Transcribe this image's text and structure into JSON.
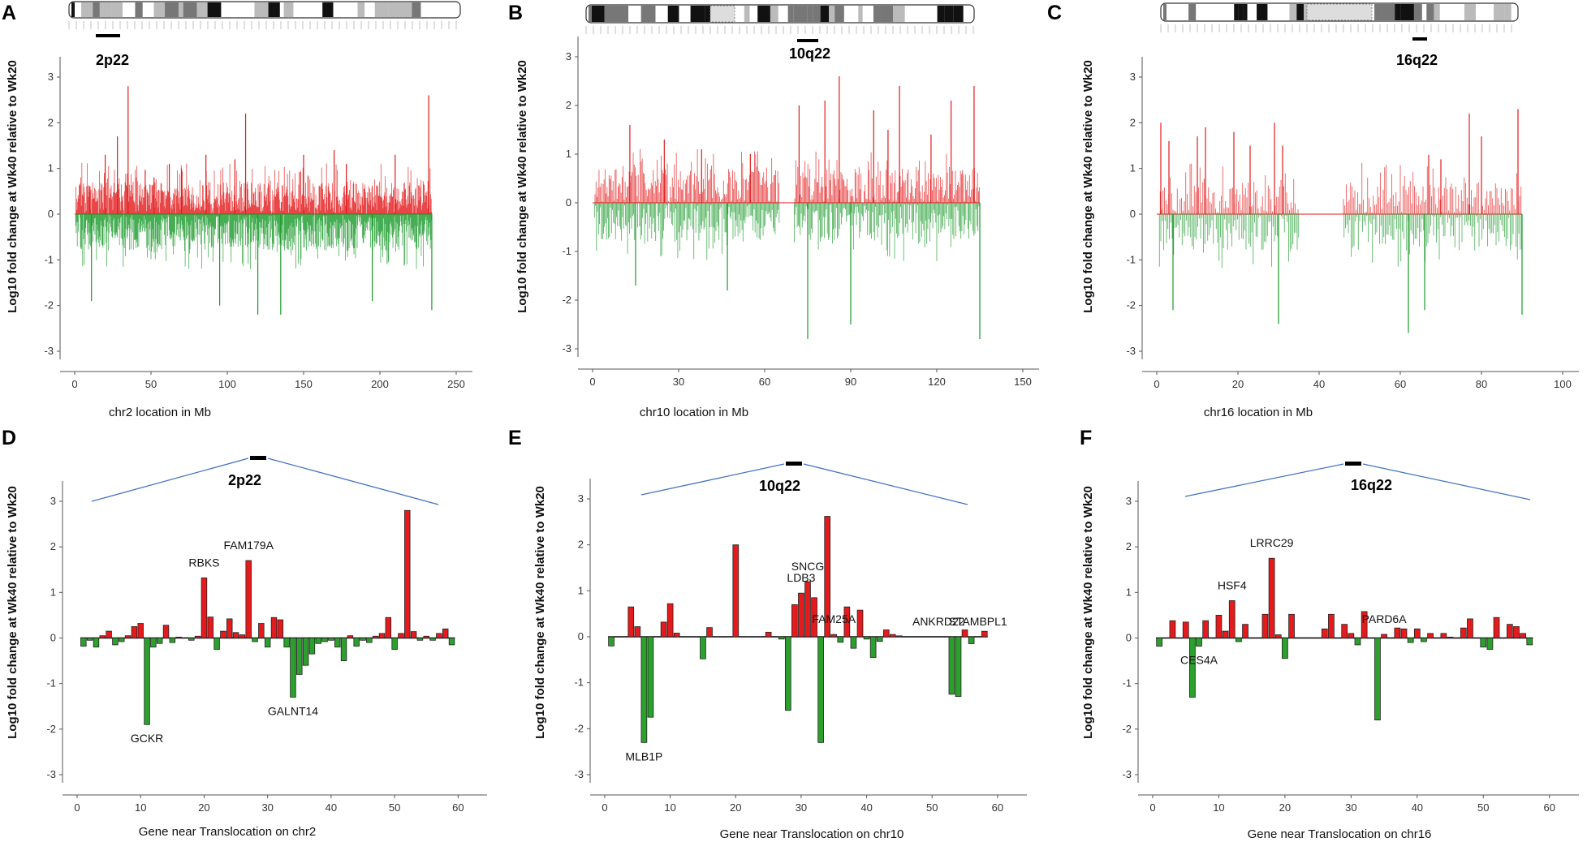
{
  "figure": {
    "panels": [
      {
        "label": "A",
        "band": "2p22",
        "xlabel": "chr2 location in Mb",
        "ylabel": "Log10 fold change at Wk40 relative to Wk20"
      },
      {
        "label": "B",
        "band": "10q22",
        "xlabel": "chr10 location in Mb",
        "ylabel": "Log10 fold change at Wk40 relative to Wk20"
      },
      {
        "label": "C",
        "band": "16q22",
        "xlabel": "chr16 location in Mb",
        "ylabel": "Log10 fold change at Wk40 relative to Wk20"
      },
      {
        "label": "D",
        "band": "2p22",
        "xlabel": "Gene near Translocation on chr2",
        "ylabel": "Log10 fold change at Wk40 relative to Wk20"
      },
      {
        "label": "E",
        "band": "10q22",
        "xlabel": "Gene near Translocation on chr10",
        "ylabel": "Log10 fold change at Wk40 relative to Wk20"
      },
      {
        "label": "F",
        "band": "16q22",
        "xlabel": "Gene near Translocation on chr16",
        "ylabel": "Log10 fold change at Wk40 relative to Wk20"
      }
    ]
  },
  "colors": {
    "up": "#e31a1c",
    "down": "#1a9a2a",
    "bar_up": "#e41a1c",
    "bar_down": "#2ca02c",
    "zoom_line": "#4472c4"
  },
  "chart_data": [
    {
      "id": "A",
      "type": "line",
      "title": "",
      "xlabel": "chr2 location in Mb",
      "ylabel": "Log10 fold change at Wk40 relative to Wk20",
      "xlim": [
        0,
        250
      ],
      "ylim": [
        -3,
        3
      ],
      "xticks": [
        0,
        50,
        100,
        150,
        200,
        250
      ],
      "yticks": [
        -3,
        -2,
        -1,
        0,
        1,
        2,
        3
      ],
      "peaks": [
        {
          "x": 10,
          "y": 0.6
        },
        {
          "x": 20,
          "y": 1.3
        },
        {
          "x": 28,
          "y": 1.7
        },
        {
          "x": 35,
          "y": 2.8
        },
        {
          "x": 11,
          "y": -1.9
        },
        {
          "x": 52,
          "y": 0.8
        },
        {
          "x": 62,
          "y": 1.1
        },
        {
          "x": 70,
          "y": 1.0
        },
        {
          "x": 86,
          "y": 1.3
        },
        {
          "x": 95,
          "y": -2.0
        },
        {
          "x": 105,
          "y": 1.2
        },
        {
          "x": 112,
          "y": 2.2
        },
        {
          "x": 120,
          "y": -2.2
        },
        {
          "x": 135,
          "y": -2.2
        },
        {
          "x": 150,
          "y": 1.3
        },
        {
          "x": 170,
          "y": 1.4
        },
        {
          "x": 178,
          "y": 1.1
        },
        {
          "x": 195,
          "y": -1.9
        },
        {
          "x": 210,
          "y": 1.3
        },
        {
          "x": 232,
          "y": 2.6
        },
        {
          "x": 234,
          "y": -2.1
        }
      ]
    },
    {
      "id": "B",
      "type": "line",
      "title": "",
      "xlabel": "chr10 location in Mb",
      "ylabel": "Log10 fold change at Wk40 relative to Wk20",
      "xlim": [
        0,
        150
      ],
      "ylim": [
        -3,
        3
      ],
      "xticks": [
        0,
        30,
        60,
        90,
        120,
        150
      ],
      "yticks": [
        -3,
        -2,
        -1,
        0,
        1,
        2,
        3
      ],
      "gap": [
        65,
        70
      ],
      "peaks": [
        {
          "x": 13,
          "y": 1.6
        },
        {
          "x": 15,
          "y": -1.7
        },
        {
          "x": 25,
          "y": 1.3
        },
        {
          "x": 38,
          "y": 1.1
        },
        {
          "x": 47,
          "y": -1.8
        },
        {
          "x": 55,
          "y": 1.0
        },
        {
          "x": 72,
          "y": 2.0
        },
        {
          "x": 75,
          "y": -2.8
        },
        {
          "x": 81,
          "y": 2.1
        },
        {
          "x": 86,
          "y": 2.6
        },
        {
          "x": 90,
          "y": -2.5
        },
        {
          "x": 98,
          "y": 1.9
        },
        {
          "x": 103,
          "y": 1.5
        },
        {
          "x": 107,
          "y": 2.4
        },
        {
          "x": 118,
          "y": 1.4
        },
        {
          "x": 125,
          "y": 2.1
        },
        {
          "x": 133,
          "y": 2.4
        },
        {
          "x": 135,
          "y": -2.8
        }
      ]
    },
    {
      "id": "C",
      "type": "line",
      "title": "",
      "xlabel": "chr16 location in Mb",
      "ylabel": "Log10 fold change at Wk40 relative to Wk20",
      "xlim": [
        0,
        100
      ],
      "ylim": [
        -3,
        3
      ],
      "xticks": [
        0,
        20,
        40,
        60,
        80,
        100
      ],
      "yticks": [
        -3,
        -2,
        -1,
        0,
        1,
        2,
        3
      ],
      "gap": [
        35,
        46
      ],
      "peaks": [
        {
          "x": 1,
          "y": 2.0
        },
        {
          "x": 3,
          "y": 1.6
        },
        {
          "x": 4,
          "y": -2.1
        },
        {
          "x": 10,
          "y": 1.7
        },
        {
          "x": 12,
          "y": 1.9
        },
        {
          "x": 19,
          "y": 1.8
        },
        {
          "x": 23,
          "y": 1.5
        },
        {
          "x": 29,
          "y": 2.0
        },
        {
          "x": 30,
          "y": -2.4
        },
        {
          "x": 31,
          "y": 1.5
        },
        {
          "x": 62,
          "y": -2.6
        },
        {
          "x": 66,
          "y": -2.1
        },
        {
          "x": 67,
          "y": 1.3
        },
        {
          "x": 70,
          "y": 1.2
        },
        {
          "x": 77,
          "y": 2.2
        },
        {
          "x": 80,
          "y": 1.7
        },
        {
          "x": 89,
          "y": 2.3
        },
        {
          "x": 90,
          "y": -2.2
        }
      ]
    },
    {
      "id": "D",
      "type": "bar",
      "title": "",
      "xlabel": "Gene near Translocation on chr2",
      "ylabel": "Log10 fold change at Wk40 relative to Wk20",
      "xlim": [
        0,
        62
      ],
      "ylim": [
        -3,
        3
      ],
      "xticks": [
        0,
        10,
        20,
        30,
        40,
        50,
        60
      ],
      "yticks": [
        -3,
        -2,
        -1,
        0,
        1,
        2,
        3
      ],
      "values": [
        -0.18,
        -0.05,
        -0.2,
        0.05,
        0.15,
        -0.15,
        -0.08,
        0.05,
        0.25,
        0.32,
        -1.9,
        -0.2,
        -0.12,
        0.28,
        -0.1,
        0.02,
        0.0,
        -0.05,
        0.04,
        1.32,
        0.46,
        -0.25,
        0.15,
        0.42,
        0.12,
        0.07,
        1.7,
        -0.08,
        0.32,
        -0.2,
        0.45,
        0.4,
        -0.2,
        -1.3,
        -0.8,
        -0.6,
        -0.35,
        -0.12,
        -0.08,
        -0.05,
        -0.2,
        -0.5,
        0.05,
        -0.18,
        -0.05,
        -0.1,
        0.04,
        0.1,
        0.45,
        -0.25,
        0.1,
        2.8,
        0.14,
        -0.05,
        0.04,
        -0.05,
        0.1,
        0.2,
        -0.15
      ],
      "annotations": [
        {
          "text": "GCKR",
          "x": 11
        },
        {
          "text": "RBKS",
          "x": 20
        },
        {
          "text": "FAM179A",
          "x": 27
        },
        {
          "text": "GALNT14",
          "x": 34
        }
      ]
    },
    {
      "id": "E",
      "type": "bar",
      "title": "",
      "xlabel": "Gene near Translocation on chr10",
      "ylabel": "Log10 fold change at Wk40 relative to Wk20",
      "xlim": [
        0,
        62
      ],
      "ylim": [
        -3,
        3
      ],
      "xticks": [
        0,
        10,
        20,
        30,
        40,
        50,
        60
      ],
      "yticks": [
        -3,
        -2,
        -1,
        0,
        1,
        2,
        3
      ],
      "values": [
        -0.2,
        0.0,
        0.0,
        0.65,
        0.22,
        -2.3,
        -1.75,
        0.0,
        0.32,
        0.72,
        0.08,
        0.0,
        0.0,
        0.0,
        -0.48,
        0.2,
        0.0,
        0.0,
        0.0,
        2.0,
        0.0,
        0.0,
        0.0,
        0.0,
        0.1,
        0.0,
        -0.05,
        -1.6,
        0.7,
        0.95,
        1.2,
        0.85,
        -2.3,
        2.62,
        0.05,
        -0.12,
        0.65,
        -0.25,
        0.58,
        -0.05,
        -0.45,
        -0.1,
        0.15,
        0.05,
        0.02,
        0.0,
        0.0,
        0.0,
        0.0,
        0.0,
        0.0,
        0.0,
        -1.25,
        -1.3,
        0.15,
        -0.15,
        0.0,
        0.12
      ],
      "annotations": [
        {
          "text": "MLB1P",
          "x": 6
        },
        {
          "text": "SNCG",
          "x": 31
        },
        {
          "text": "FAM25A",
          "x": 35
        },
        {
          "text": "LDB3",
          "x": 30
        },
        {
          "text": "ANKRD22",
          "x": 51
        },
        {
          "text": "STAMBPL1",
          "x": 57
        }
      ]
    },
    {
      "id": "F",
      "type": "bar",
      "title": "",
      "xlabel": "Gene near Translocation on chr16",
      "ylabel": "Log10 fold change at Wk40 relative to Wk20",
      "xlim": [
        0,
        62
      ],
      "ylim": [
        -3,
        3
      ],
      "xticks": [
        0,
        10,
        20,
        30,
        40,
        50,
        60
      ],
      "yticks": [
        -3,
        -2,
        -1,
        0,
        1,
        2,
        3
      ],
      "values": [
        -0.18,
        0.0,
        0.38,
        0.0,
        0.35,
        -1.3,
        -0.18,
        0.38,
        0.0,
        0.5,
        0.15,
        0.82,
        -0.08,
        0.3,
        0.0,
        0.0,
        0.52,
        1.75,
        0.07,
        -0.45,
        0.52,
        0.0,
        0.0,
        0.0,
        0.0,
        0.2,
        0.52,
        0.0,
        0.3,
        0.1,
        -0.15,
        0.58,
        0.0,
        -1.8,
        0.08,
        0.0,
        0.22,
        0.2,
        -0.1,
        0.2,
        -0.08,
        0.1,
        0.0,
        0.1,
        0.02,
        0.0,
        0.22,
        0.42,
        0.0,
        -0.2,
        -0.25,
        0.45,
        0.0,
        0.3,
        0.25,
        0.1,
        -0.15
      ],
      "annotations": [
        {
          "text": "CES4A",
          "x": 7
        },
        {
          "text": "HSF4",
          "x": 12
        },
        {
          "text": "LRRC29",
          "x": 18
        },
        {
          "text": "PARD6A",
          "x": 35
        }
      ]
    }
  ]
}
